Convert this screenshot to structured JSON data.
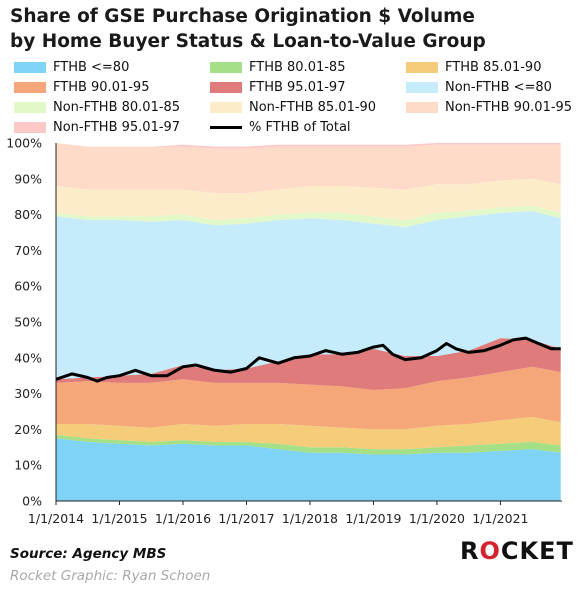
{
  "header": {
    "title_line1": "Share of GSE Purchase Origination $ Volume",
    "title_line2": "by Home Buyer Status & Loan-to-Value Group"
  },
  "footer": {
    "source": "Source: Agency MBS",
    "credit": "Rocket Graphic: Ryan Schoen",
    "logo_text_1": "R",
    "logo_text_2": "O",
    "logo_text_3": "CKET",
    "logo_colors": {
      "text": "#111111",
      "accent": "#d6232b"
    }
  },
  "chart_data": {
    "type": "area",
    "stacked": true,
    "title": "Share of GSE Purchase Origination $ Volume by Home Buyer Status & Loan-to-Value Group",
    "xlabel": "",
    "ylabel": "",
    "ylim": [
      0,
      100
    ],
    "y_ticks": [
      "0%",
      "10%",
      "20%",
      "30%",
      "40%",
      "50%",
      "60%",
      "70%",
      "80%",
      "90%",
      "100%"
    ],
    "x_ticks": [
      "1/1/2014",
      "1/1/2015",
      "1/1/2016",
      "1/1/2017",
      "1/1/2018",
      "1/1/2019",
      "1/1/2020",
      "1/1/2021"
    ],
    "x": [
      2014.0,
      2014.5,
      2015.0,
      2015.5,
      2016.0,
      2016.5,
      2017.0,
      2017.5,
      2018.0,
      2018.5,
      2019.0,
      2019.5,
      2020.0,
      2020.5,
      2021.0,
      2021.5,
      2021.95
    ],
    "legend_placement": "top",
    "grid": false,
    "series": [
      {
        "name": "FTHB <=80",
        "color": "#7fd3f7",
        "values": [
          17.5,
          16.5,
          16.0,
          15.5,
          16.0,
          15.5,
          15.5,
          14.5,
          13.5,
          13.5,
          13.0,
          13.0,
          13.5,
          13.5,
          14.0,
          14.5,
          13.5
        ]
      },
      {
        "name": "FTHB 80.01-85",
        "color": "#a5e086",
        "values": [
          1.0,
          1.0,
          1.0,
          1.0,
          1.0,
          1.0,
          1.0,
          1.5,
          1.5,
          1.5,
          1.5,
          1.5,
          1.5,
          2.0,
          2.0,
          2.0,
          2.0
        ]
      },
      {
        "name": "FTHB 85.01-90",
        "color": "#f5cc7a",
        "values": [
          3.0,
          4.0,
          4.0,
          4.0,
          4.5,
          4.5,
          5.0,
          5.5,
          6.0,
          5.5,
          5.5,
          5.5,
          6.0,
          6.0,
          6.5,
          7.0,
          6.5
        ]
      },
      {
        "name": "FTHB 90.01-95",
        "color": "#f5a77a",
        "values": [
          11.5,
          12.0,
          12.0,
          12.5,
          12.5,
          12.0,
          11.5,
          11.5,
          11.5,
          11.5,
          11.0,
          11.5,
          12.5,
          13.0,
          13.5,
          14.0,
          14.0
        ]
      },
      {
        "name": "FTHB 95.01-97",
        "color": "#df7b7b",
        "values": [
          1.0,
          1.0,
          2.0,
          2.5,
          4.0,
          3.5,
          4.0,
          6.0,
          8.5,
          9.0,
          11.5,
          9.0,
          7.0,
          7.5,
          9.5,
          7.5,
          6.5
        ]
      },
      {
        "name": "Non-FTHB <=80",
        "color": "#c6ebfa",
        "values": [
          45.5,
          44.0,
          43.5,
          42.5,
          40.5,
          40.5,
          40.5,
          39.5,
          38.0,
          37.5,
          35.0,
          36.0,
          38.0,
          37.5,
          35.0,
          36.0,
          36.5
        ]
      },
      {
        "name": "Non-FTHB 80.01-85",
        "color": "#e3f8c8",
        "values": [
          1.0,
          1.0,
          1.0,
          1.5,
          1.5,
          1.5,
          1.5,
          1.5,
          1.5,
          2.0,
          2.0,
          2.0,
          2.0,
          1.5,
          1.5,
          1.5,
          1.5
        ]
      },
      {
        "name": "Non-FTHB 85.01-90",
        "color": "#fdecc9",
        "values": [
          7.5,
          7.5,
          7.5,
          7.5,
          7.0,
          7.5,
          7.0,
          7.0,
          7.5,
          7.5,
          8.0,
          8.5,
          8.0,
          7.5,
          7.5,
          7.5,
          8.0
        ]
      },
      {
        "name": "Non-FTHB 90.01-95",
        "color": "#fddbc8",
        "values": [
          12.0,
          12.0,
          12.0,
          11.9,
          12.0,
          12.5,
          12.5,
          12.0,
          11.0,
          11.0,
          11.5,
          12.0,
          11.0,
          11.0,
          10.0,
          9.5,
          11.0
        ]
      },
      {
        "name": "Non-FTHB 95.01-97",
        "color": "#fbc8c8",
        "values": [
          0.0,
          0.0,
          0.0,
          0.1,
          0.5,
          0.5,
          0.5,
          0.5,
          0.5,
          0.5,
          0.5,
          0.5,
          0.5,
          0.5,
          0.5,
          0.5,
          0.5
        ]
      }
    ],
    "line_series": {
      "name": "% FTHB of Total",
      "color": "#000000",
      "x": [
        2014.0,
        2014.25,
        2014.5,
        2014.65,
        2014.8,
        2015.0,
        2015.25,
        2015.5,
        2015.75,
        2016.0,
        2016.2,
        2016.5,
        2016.75,
        2017.0,
        2017.2,
        2017.5,
        2017.75,
        2018.0,
        2018.25,
        2018.5,
        2018.75,
        2019.0,
        2019.15,
        2019.3,
        2019.5,
        2019.75,
        2020.0,
        2020.15,
        2020.3,
        2020.5,
        2020.75,
        2021.0,
        2021.2,
        2021.4,
        2021.6,
        2021.8,
        2021.95
      ],
      "values": [
        34.0,
        35.5,
        34.5,
        33.5,
        34.5,
        35.0,
        36.5,
        35.0,
        35.0,
        37.5,
        38.0,
        36.5,
        36.0,
        37.0,
        40.0,
        38.5,
        40.0,
        40.5,
        42.0,
        41.0,
        41.5,
        43.0,
        43.5,
        41.0,
        39.5,
        40.0,
        42.0,
        44.0,
        42.5,
        41.5,
        42.0,
        43.5,
        45.0,
        45.5,
        44.0,
        42.5,
        42.5
      ]
    }
  }
}
